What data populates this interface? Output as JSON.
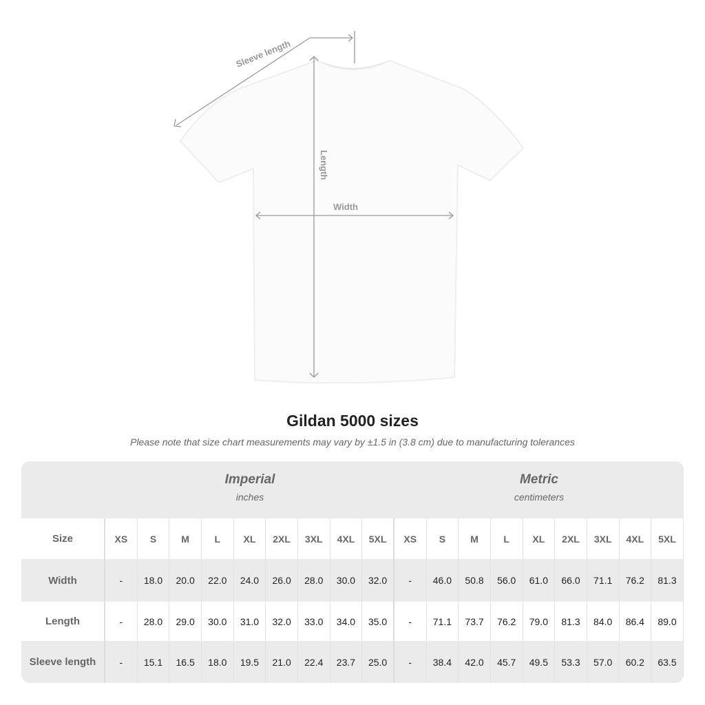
{
  "diagram": {
    "sleeve_label": "Sleeve length",
    "length_label": "Length",
    "width_label": "Width"
  },
  "title": "Gildan 5000 sizes",
  "note": "Please note that size chart measurements may vary by ±1.5 in (3.8 cm) due to manufacturing tolerances",
  "table": {
    "imperial": {
      "name": "Imperial",
      "unit": "inches"
    },
    "metric": {
      "name": "Metric",
      "unit": "centimeters"
    },
    "header_label": "Size",
    "sizes": [
      "XS",
      "S",
      "M",
      "L",
      "XL",
      "2XL",
      "3XL",
      "4XL",
      "5XL",
      "XS",
      "S",
      "M",
      "L",
      "XL",
      "2XL",
      "3XL",
      "4XL",
      "5XL"
    ],
    "rows": [
      {
        "label": "Width",
        "values": [
          "-",
          "18.0",
          "20.0",
          "22.0",
          "24.0",
          "26.0",
          "28.0",
          "30.0",
          "32.0",
          "-",
          "46.0",
          "50.8",
          "56.0",
          "61.0",
          "66.0",
          "71.1",
          "76.2",
          "81.3"
        ]
      },
      {
        "label": "Length",
        "values": [
          "-",
          "28.0",
          "29.0",
          "30.0",
          "31.0",
          "32.0",
          "33.0",
          "34.0",
          "35.0",
          "-",
          "71.1",
          "73.7",
          "76.2",
          "79.0",
          "81.3",
          "84.0",
          "86.4",
          "89.0"
        ]
      },
      {
        "label": "Sleeve length",
        "values": [
          "-",
          "15.1",
          "16.5",
          "18.0",
          "19.5",
          "21.0",
          "22.4",
          "23.7",
          "25.0",
          "-",
          "38.4",
          "42.0",
          "45.7",
          "49.5",
          "53.3",
          "57.0",
          "60.2",
          "63.5"
        ]
      }
    ]
  }
}
